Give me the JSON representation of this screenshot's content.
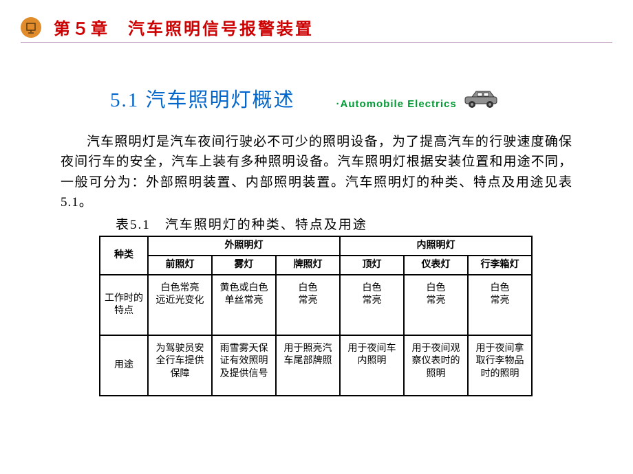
{
  "colors": {
    "chapter_title": "#cc0000",
    "hr": "#b78fb7",
    "section_title": "#0066cc",
    "auto_text": "#009933",
    "icon_bg": "#e08b2c",
    "car_body": "#919191",
    "car_wheel": "#333333",
    "text": "#000000",
    "border": "#000000"
  },
  "fonts": {
    "chapter_title_size": 24,
    "section_title_size": 29,
    "auto_text_size": 15,
    "paragraph_size": 19,
    "table_caption_size": 19,
    "table_cell_size": 14
  },
  "header": {
    "chapter_title": "第５章　汽车照明信号报警装置"
  },
  "section": {
    "title": "5.1 汽车照明灯概述",
    "auto_text": "·Automobile  Electrics"
  },
  "paragraph": "汽车照明灯是汽车夜间行驶必不可少的照明设备，为了提高汽车的行驶速度确保夜间行车的安全，汽车上装有多种照明设备。汽车照明灯根据安装位置和用途不同，一般可分为：外部照明装置、内部照明装置。汽车照明灯的种类、特点及用途见表5.1。",
  "table": {
    "caption": "表5.1　汽车照明灯的种类、特点及用途",
    "group_headers": [
      "外照明灯",
      "内照明灯"
    ],
    "row_header_top": "种类",
    "columns": [
      "前照灯",
      "雾灯",
      "牌照灯",
      "顶灯",
      "仪表灯",
      "行李箱灯"
    ],
    "rows": [
      {
        "header": "工作时的特点",
        "cells": [
          "白色常亮\n远近光变化",
          "黄色或白色\n单丝常亮",
          "白色\n常亮",
          "白色\n常亮",
          "白色\n常亮",
          "白色\n常亮"
        ]
      },
      {
        "header": "用途",
        "cells": [
          "为驾驶员安全行车提供保障",
          "雨雪雾天保证有效照明及提供信号",
          "用于照亮汽车尾部牌照",
          "用于夜间车内照明",
          "用于夜间观察仪表时的照明",
          "用于夜间拿取行李物品时的照明"
        ]
      }
    ]
  }
}
